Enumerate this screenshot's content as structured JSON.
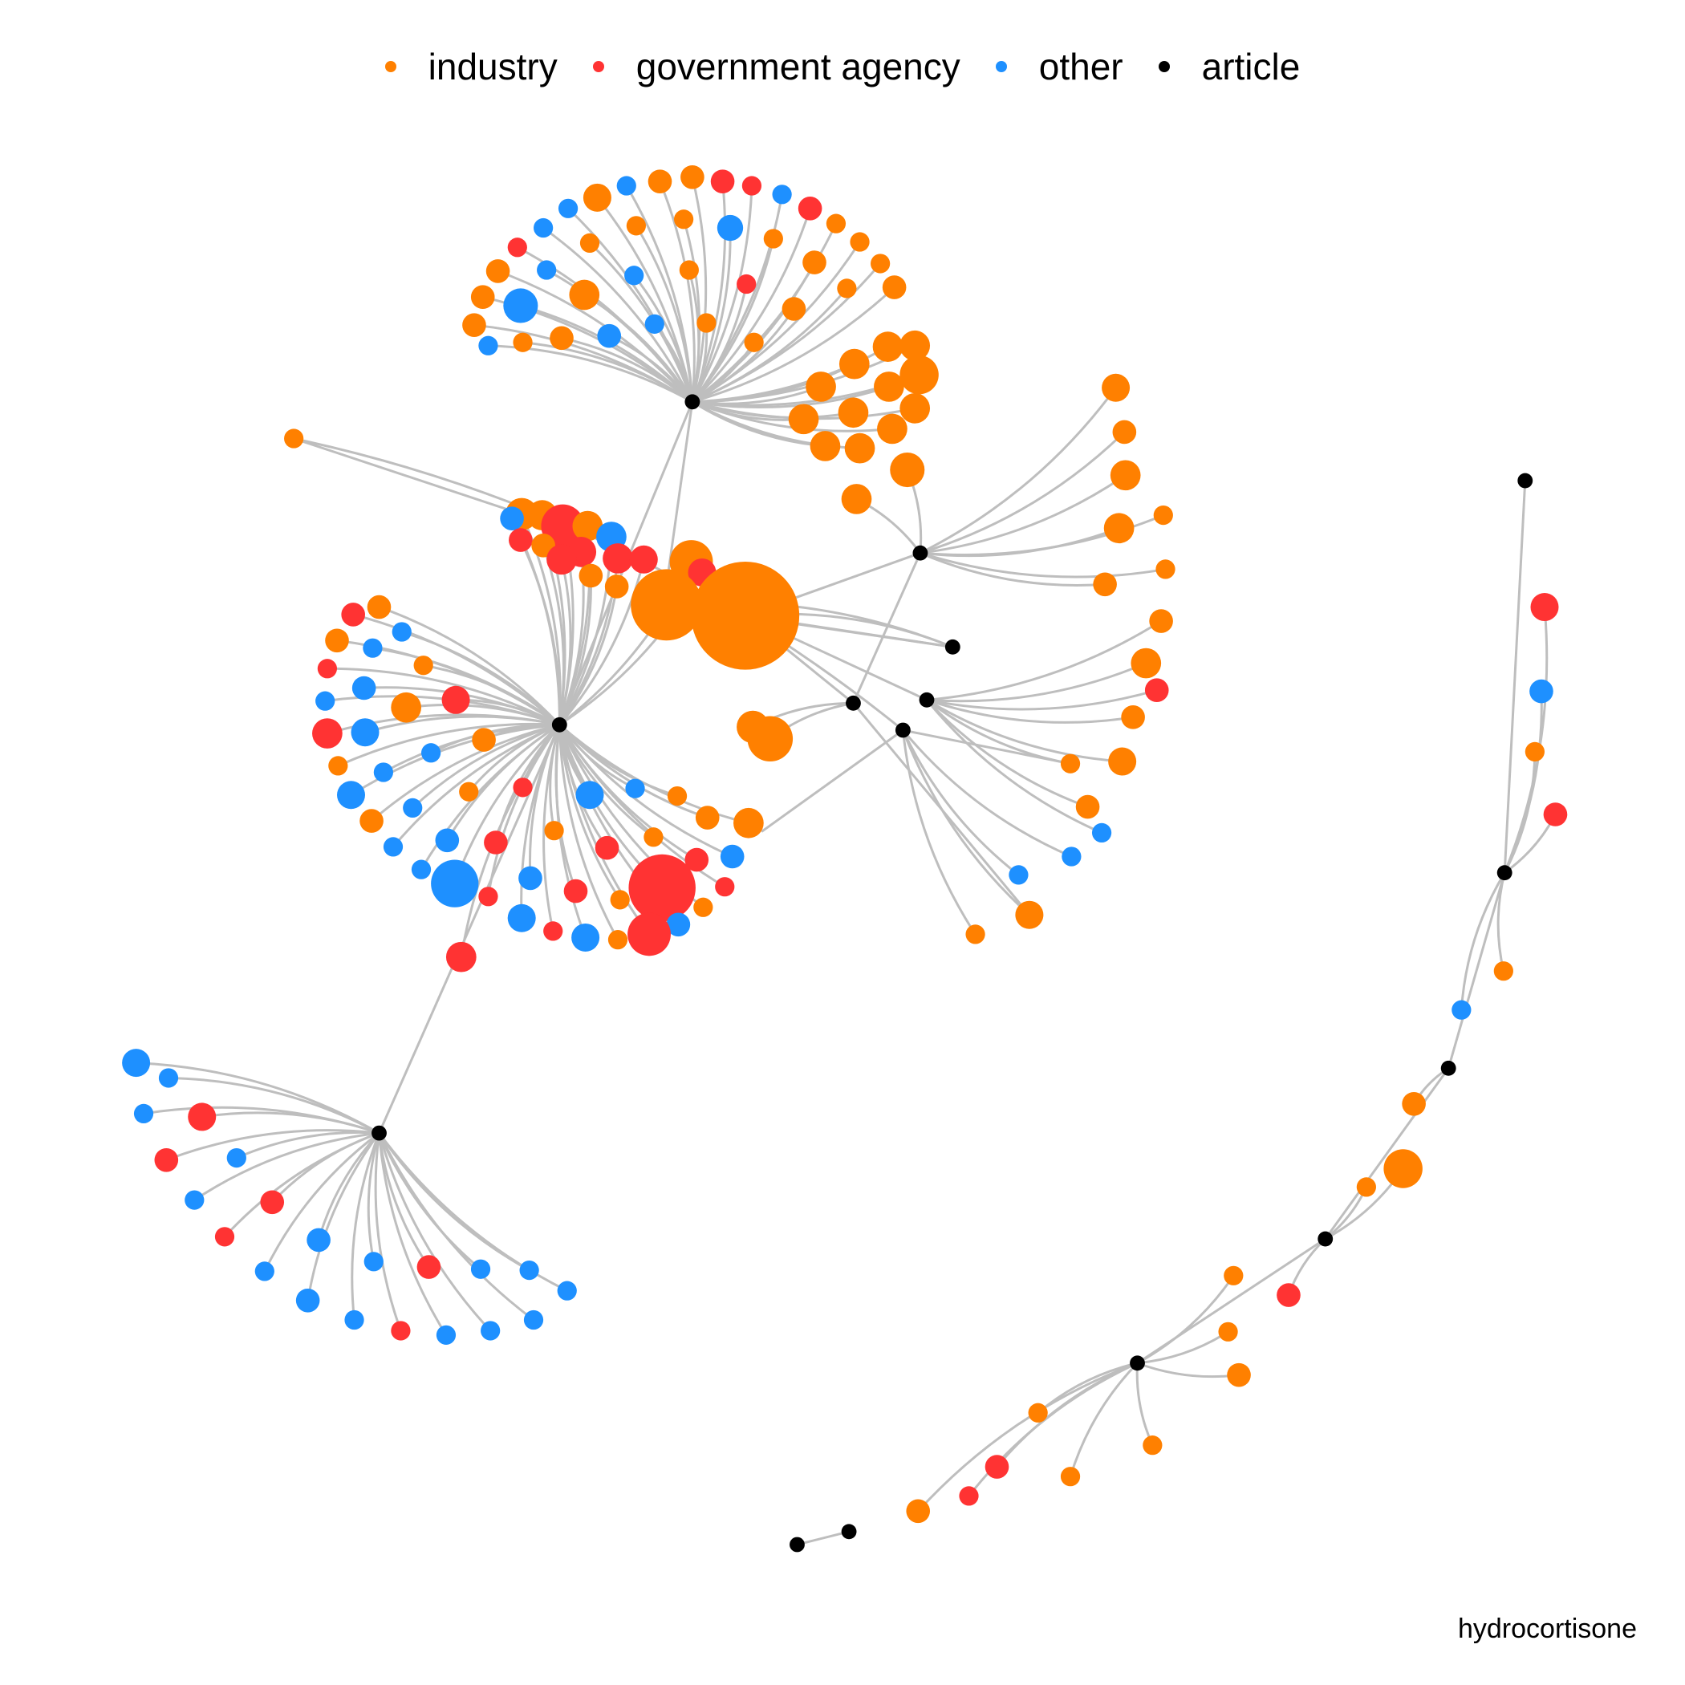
{
  "legend": {
    "items": [
      {
        "label": "industry",
        "color": "#FF8000"
      },
      {
        "label": "government agency",
        "color": "#FF3333"
      },
      {
        "label": "other",
        "color": "#1E90FF"
      },
      {
        "label": "article",
        "color": "#000000"
      }
    ]
  },
  "caption": "hydrocortisone",
  "colors": {
    "edge": "#BEBEBE",
    "industry": "#FF8000",
    "government agency": "#FF3333",
    "other": "#1E90FF",
    "article": "#000000"
  }
}
